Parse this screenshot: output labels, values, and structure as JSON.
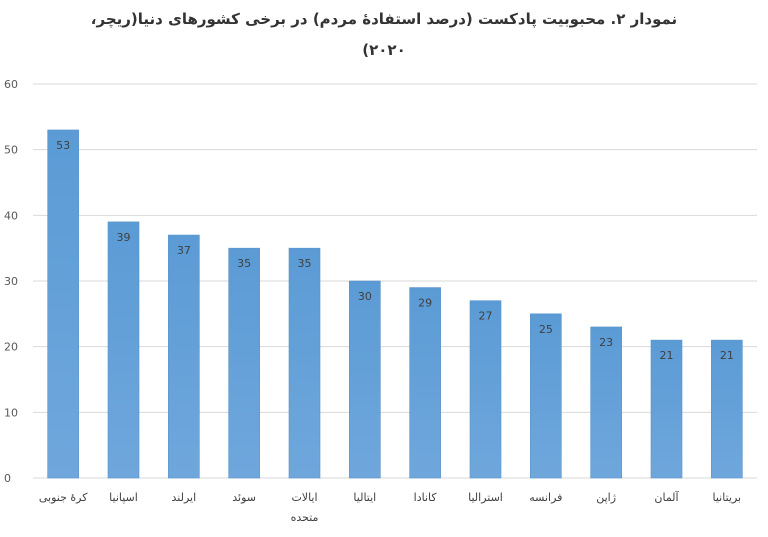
{
  "chart_data": {
    "type": "bar",
    "title_lines": [
      "نمودار ۲. محبوبیت پادکست (درصد استفادهٔ مردم) در برخی کشورهای دنیا(ریچر،",
      "۲۰۲۰)"
    ],
    "categories": [
      [
        "کرهٔ جنوبی"
      ],
      [
        "اسپانیا"
      ],
      [
        "ایرلند"
      ],
      [
        "سوئد"
      ],
      [
        "ایالات",
        "متحده"
      ],
      [
        "ایتالیا"
      ],
      [
        "کانادا"
      ],
      [
        "استرالیا"
      ],
      [
        "فرانسه"
      ],
      [
        "ژاپن"
      ],
      [
        "آلمان"
      ],
      [
        "بریتانیا"
      ]
    ],
    "values": [
      53,
      39,
      37,
      35,
      35,
      30,
      29,
      27,
      25,
      23,
      21,
      21
    ],
    "ylim": [
      0,
      60
    ],
    "yticks": [
      0,
      10,
      20,
      30,
      40,
      50,
      60
    ],
    "grid": true,
    "legend": "none",
    "colors": {
      "bar_top": "#5b9bd5",
      "bar_bottom": "#6fa7dc",
      "grid": "#d9d9d9",
      "axis_text": "#595959"
    }
  }
}
